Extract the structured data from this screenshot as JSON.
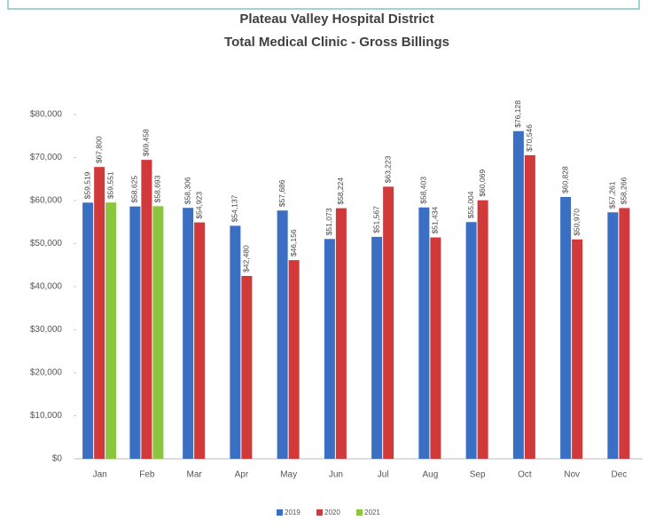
{
  "chart_data": {
    "type": "bar",
    "title": "Plateau Valley Hospital District",
    "subtitle": "Total Medical Clinic  - Gross Billings",
    "categories": [
      "Jan",
      "Feb",
      "Mar",
      "Apr",
      "May",
      "Jun",
      "Jul",
      "Aug",
      "Sep",
      "Oct",
      "Nov",
      "Dec"
    ],
    "series": [
      {
        "name": "2019",
        "color": "#3b6fc4",
        "values": [
          59519,
          58625,
          58306,
          54137,
          57686,
          51073,
          51567,
          58403,
          55004,
          76128,
          60828,
          57261
        ],
        "value_labels": [
          "$59,519",
          "$58,625",
          "$58,306",
          "$54,137",
          "$57,686",
          "$51,073",
          "$51,567",
          "$58,403",
          "$55,004",
          "$76,128",
          "$60,828",
          "$57,261"
        ]
      },
      {
        "name": "2020",
        "color": "#d2393a",
        "values": [
          67800,
          69458,
          54923,
          42480,
          46156,
          58224,
          63223,
          51434,
          60069,
          70546,
          50970,
          58266
        ],
        "value_labels": [
          "$67,800",
          "$69,458",
          "$54,923",
          "$42,480",
          "$46,156",
          "$58,224",
          "$63,223",
          "$51,434",
          "$60,069",
          "$70,546",
          "$50,970",
          "$58,266"
        ]
      },
      {
        "name": "2021",
        "color": "#8cc63f",
        "values": [
          59551,
          58693,
          null,
          null,
          null,
          null,
          null,
          null,
          null,
          null,
          null,
          null
        ],
        "value_labels": [
          "$59,551",
          "$58,693",
          null,
          null,
          null,
          null,
          null,
          null,
          null,
          null,
          null,
          null
        ]
      }
    ],
    "ylim": [
      0,
      80000
    ],
    "yticks": [
      {
        "value": 0,
        "label": "$0"
      },
      {
        "value": 10000,
        "label": "$10,000"
      },
      {
        "value": 20000,
        "label": "$20,000"
      },
      {
        "value": 30000,
        "label": "$30,000"
      },
      {
        "value": 40000,
        "label": "$40,000"
      },
      {
        "value": 50000,
        "label": "$50,000"
      },
      {
        "value": 60000,
        "label": "$60,000"
      },
      {
        "value": 70000,
        "label": "$70,000"
      },
      {
        "value": 80000,
        "label": "$80,000"
      }
    ],
    "grid": false,
    "legend": "bottom"
  }
}
